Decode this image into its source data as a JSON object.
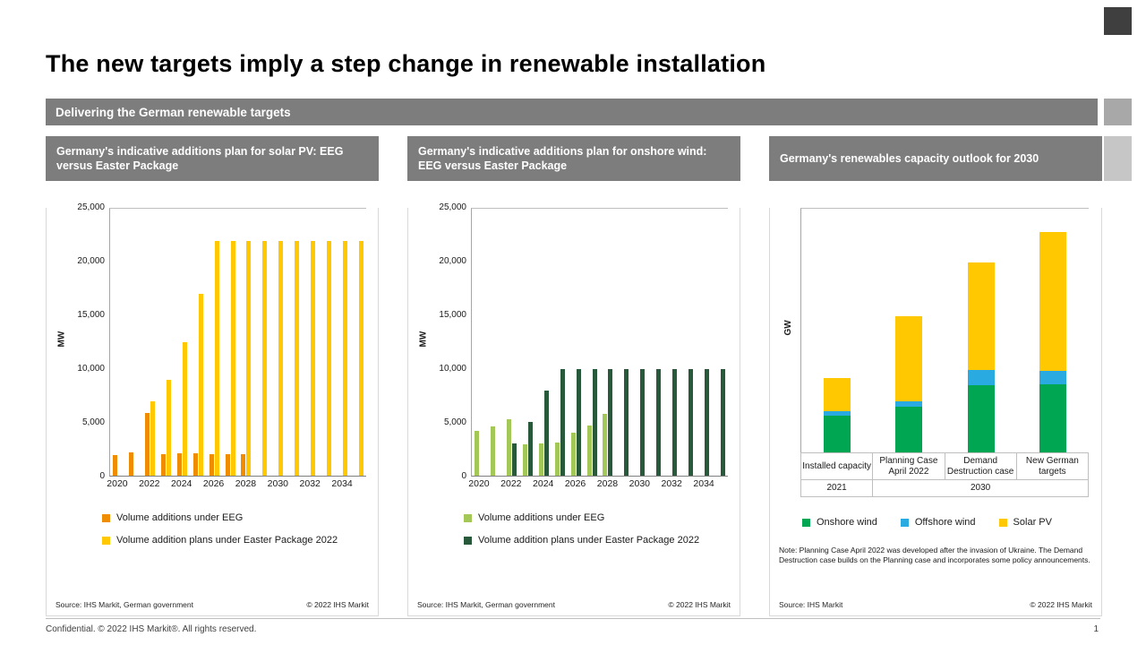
{
  "slide": {
    "title": "The new targets imply a step change in renewable installation",
    "banner": "Delivering the German renewable targets",
    "footer_left": "Confidential. © 2022 IHS Markit®. All rights reserved.",
    "page_number": "1"
  },
  "panels": [
    {
      "source_left": "Source: IHS Markit, German government",
      "source_right": "© 2022 IHS Markit"
    },
    {
      "source_left": "Source: IHS Markit, German government",
      "source_right": "© 2022 IHS Markit"
    },
    {
      "note": "Note: Planning Case April 2022 was developed after the invasion of Ukraine. The Demand Destruction case builds on the Planning case and incorporates some policy announcements.",
      "source_left": "Source: IHS Markit",
      "source_right": "© 2022 IHS Markit"
    }
  ],
  "chart_data": [
    {
      "type": "bar",
      "title": "Germany's indicative additions plan for solar PV: EEG versus Easter Package",
      "ylabel": "MW",
      "ylim": [
        0,
        25000
      ],
      "ytick_labels": [
        "0",
        "5,000",
        "10,000",
        "15,000",
        "20,000",
        "25,000"
      ],
      "x": [
        2020,
        2021,
        2022,
        2023,
        2024,
        2025,
        2026,
        2027,
        2028,
        2029,
        2030,
        2031,
        2032,
        2033,
        2034,
        2035
      ],
      "xtick_labels": [
        "2020",
        "2022",
        "2024",
        "2026",
        "2028",
        "2030",
        "2032",
        "2034"
      ],
      "grid": false,
      "legend_position": "bottom-left",
      "series": [
        {
          "name": "Volume additions under EEG",
          "color": "#F08C00",
          "values": [
            1900,
            2200,
            5900,
            2000,
            2100,
            2100,
            2000,
            2000,
            2000,
            0,
            0,
            0,
            0,
            0,
            0,
            0
          ]
        },
        {
          "name": "Volume addition plans under Easter Package 2022",
          "color": "#FFC800",
          "values": [
            0,
            0,
            7000,
            9000,
            12500,
            17000,
            22000,
            22000,
            22000,
            22000,
            22000,
            22000,
            22000,
            22000,
            22000,
            22000
          ]
        }
      ]
    },
    {
      "type": "bar",
      "title": "Germany's indicative additions plan for onshore wind: EEG versus Easter Package",
      "ylabel": "MW",
      "ylim": [
        0,
        25000
      ],
      "ytick_labels": [
        "0",
        "5,000",
        "10,000",
        "15,000",
        "20,000",
        "25,000"
      ],
      "x": [
        2020,
        2021,
        2022,
        2023,
        2024,
        2025,
        2026,
        2027,
        2028,
        2029,
        2030,
        2031,
        2032,
        2033,
        2034,
        2035
      ],
      "xtick_labels": [
        "2020",
        "2022",
        "2024",
        "2026",
        "2028",
        "2030",
        "2032",
        "2034"
      ],
      "grid": false,
      "legend_position": "bottom-left",
      "series": [
        {
          "name": "Volume additions under EEG",
          "color": "#A3C857",
          "values": [
            4200,
            4600,
            5300,
            2900,
            3000,
            3100,
            4000,
            4700,
            5800,
            0,
            0,
            0,
            0,
            0,
            0,
            0
          ]
        },
        {
          "name": "Volume addition plans under Easter Package 2022",
          "color": "#27593A",
          "values": [
            0,
            0,
            3000,
            5000,
            8000,
            10000,
            10000,
            10000,
            10000,
            10000,
            10000,
            10000,
            10000,
            10000,
            10000,
            10000
          ]
        }
      ]
    },
    {
      "type": "stacked-bar",
      "title": "Germany's renewables capacity outlook for 2030",
      "ylabel": "GW",
      "ylim": [
        0,
        400
      ],
      "categories": [
        "Installed capacity",
        "Planning Case April 2022",
        "Demand Destruction case",
        "New German targets"
      ],
      "category_years": [
        {
          "label": "2021",
          "span": 1
        },
        {
          "label": "2030",
          "span": 3
        }
      ],
      "grid": false,
      "legend_position": "bottom",
      "series": [
        {
          "name": "Onshore wind",
          "color": "#00A651",
          "values": [
            60,
            75,
            110,
            112
          ]
        },
        {
          "name": "Offshore wind",
          "color": "#29ABE2",
          "values": [
            8,
            8,
            25,
            22
          ]
        },
        {
          "name": "Solar PV",
          "color": "#FFC800",
          "values": [
            54,
            140,
            175,
            226
          ]
        }
      ]
    }
  ]
}
